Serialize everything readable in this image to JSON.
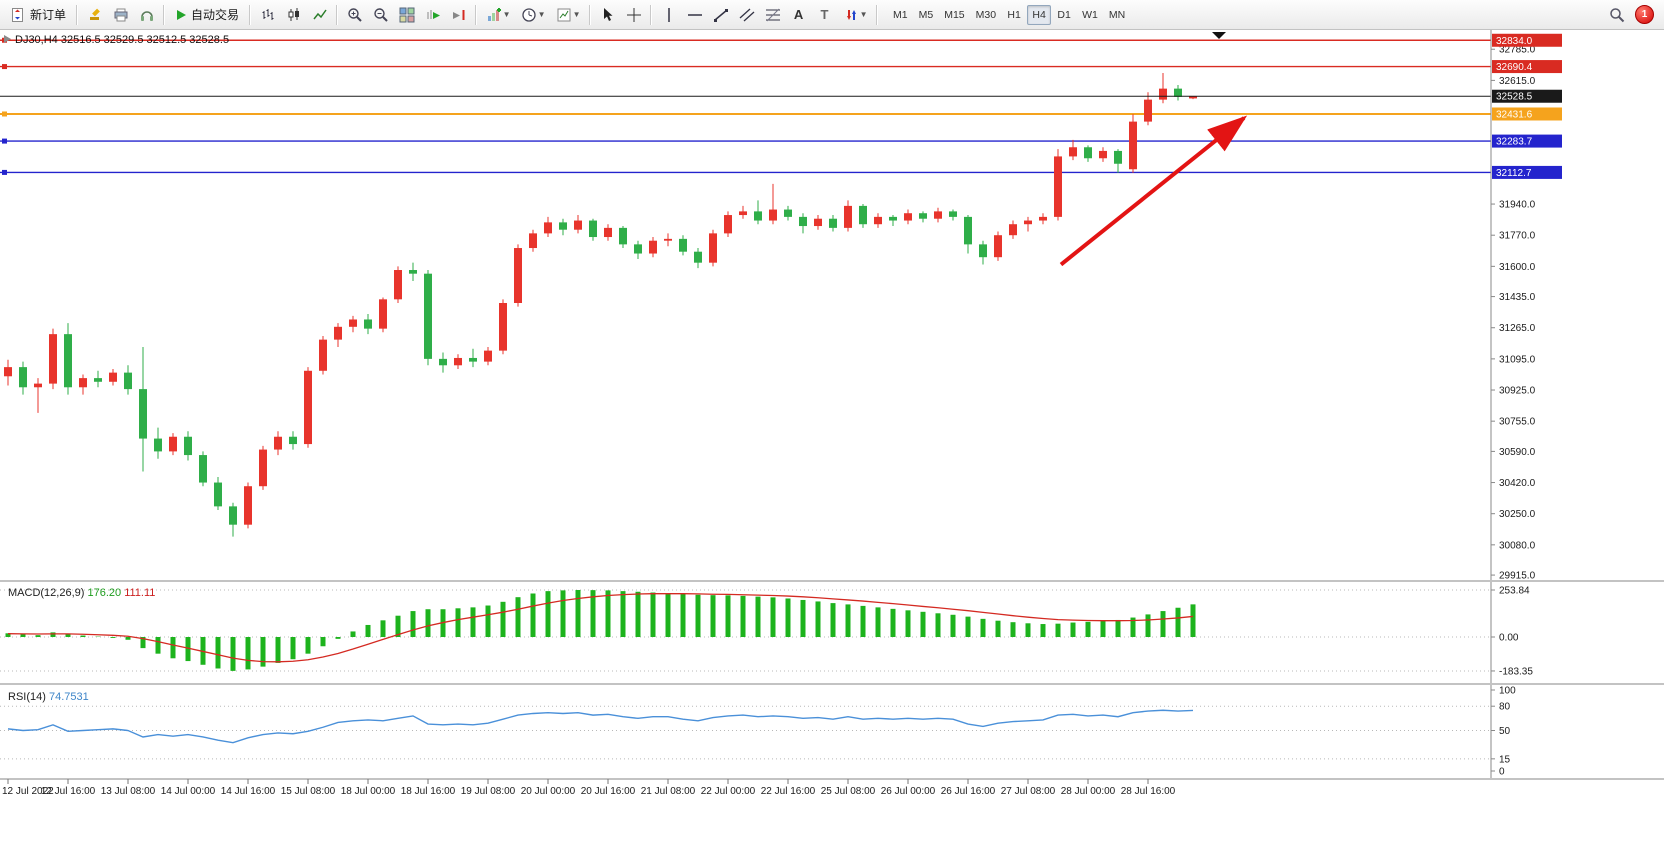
{
  "toolbar": {
    "new_order": "新订单",
    "auto_trading": "自动交易",
    "timeframes": [
      "M1",
      "M5",
      "M15",
      "M30",
      "H1",
      "H4",
      "D1",
      "W1",
      "MN"
    ],
    "active_timeframe": "H4",
    "notification_badge": "1",
    "icon_names": [
      "new-order-icon",
      "hammer-icon",
      "print-icon",
      "headset-icon",
      "autotrading-play-icon",
      "bar-chart-icon",
      "candlestick-chart-icon",
      "line-chart-icon",
      "zoom-in-icon",
      "zoom-out-icon",
      "tile-windows-icon",
      "auto-scroll-icon",
      "chart-shift-icon",
      "indicators-icon",
      "periods-icon",
      "template-icon",
      "cursor-icon",
      "crosshair-icon",
      "vertical-line-icon",
      "horizontal-line-icon",
      "trendline-icon",
      "channel-icon",
      "fibonacci-icon",
      "text-icon",
      "text-label-icon",
      "arrows-tool-icon",
      "search-icon"
    ]
  },
  "colors": {
    "up": "#e8342c",
    "down": "#2fae49",
    "macd_hist": "#1db31d",
    "macd_signal": "#d42a22",
    "rsi_line": "#4a90d9",
    "line_red": "#d92b22",
    "line_orange": "#f5a31d",
    "line_blue": "#2424cd",
    "current_price": "#1a1a1a"
  },
  "chart_data": {
    "type": "candlestick",
    "title": "DJ30,H4",
    "symbol": "DJ30",
    "timeframe": "H4",
    "ohlc_label": "32516.5 32529.5 32512.5 32528.5",
    "open": 32516.5,
    "high": 32529.5,
    "low": 32512.5,
    "close": 32528.5,
    "ylim": [
      29880,
      32890
    ],
    "candles_per_label": 4,
    "time_labels": [
      "12 Jul 2022",
      "12 Jul 16:00",
      "13 Jul 08:00",
      "14 Jul 00:00",
      "14 Jul 16:00",
      "15 Jul 08:00",
      "18 Jul 00:00",
      "18 Jul 16:00",
      "19 Jul 08:00",
      "20 Jul 00:00",
      "20 Jul 16:00",
      "21 Jul 08:00",
      "22 Jul 00:00",
      "22 Jul 16:00",
      "25 Jul 08:00",
      "26 Jul 00:00",
      "26 Jul 16:00",
      "27 Jul 08:00",
      "28 Jul 00:00",
      "28 Jul 16:00"
    ],
    "price_axis_ticks": [
      "32785.0",
      "32615.0",
      "31940.0",
      "31770.0",
      "31600.0",
      "31435.0",
      "31265.0",
      "31095.0",
      "30925.0",
      "30755.0",
      "30590.0",
      "30420.0",
      "30250.0",
      "30080.0",
      "29915.0"
    ],
    "price_tags": [
      {
        "value": 32834.0,
        "label": "32834.0",
        "type": "resistance",
        "color": "#d92b22"
      },
      {
        "value": 32690.4,
        "label": "32690.4",
        "type": "resistance",
        "color": "#d92b22"
      },
      {
        "value": 32528.5,
        "label": "32528.5",
        "type": "current-price",
        "color": "#1a1a1a"
      },
      {
        "value": 32431.6,
        "label": "32431.6",
        "type": "level",
        "color": "#f5a31d"
      },
      {
        "value": 32283.7,
        "label": "32283.7",
        "type": "support",
        "color": "#2424cd"
      },
      {
        "value": 32112.7,
        "label": "32112.7",
        "type": "support",
        "color": "#2424cd"
      }
    ],
    "arrow": {
      "color": "#e31414",
      "from": {
        "index": 70.2,
        "price": 31610
      },
      "to": {
        "index": 82.4,
        "price": 32410
      }
    },
    "candles": [
      [
        31000,
        31090,
        30950,
        31050
      ],
      [
        31050,
        31080,
        30900,
        30940
      ],
      [
        30940,
        30990,
        30800,
        30960
      ],
      [
        30960,
        31260,
        30930,
        31230
      ],
      [
        31230,
        31290,
        30900,
        30940
      ],
      [
        30940,
        31010,
        30900,
        30990
      ],
      [
        30990,
        31030,
        30940,
        30970
      ],
      [
        30970,
        31040,
        30950,
        31020
      ],
      [
        31020,
        31060,
        30900,
        30930
      ],
      [
        30930,
        31160,
        30480,
        30660
      ],
      [
        30660,
        30720,
        30550,
        30590
      ],
      [
        30590,
        30690,
        30570,
        30670
      ],
      [
        30670,
        30700,
        30540,
        30570
      ],
      [
        30570,
        30590,
        30400,
        30420
      ],
      [
        30420,
        30450,
        30270,
        30290
      ],
      [
        30290,
        30310,
        30125,
        30190
      ],
      [
        30190,
        30420,
        30170,
        30400
      ],
      [
        30400,
        30620,
        30380,
        30600
      ],
      [
        30600,
        30700,
        30570,
        30670
      ],
      [
        30670,
        30700,
        30600,
        30630
      ],
      [
        30630,
        31050,
        30610,
        31030
      ],
      [
        31030,
        31220,
        31010,
        31200
      ],
      [
        31200,
        31290,
        31160,
        31270
      ],
      [
        31270,
        31330,
        31240,
        31310
      ],
      [
        31310,
        31340,
        31230,
        31260
      ],
      [
        31260,
        31430,
        31240,
        31420
      ],
      [
        31420,
        31600,
        31400,
        31580
      ],
      [
        31580,
        31620,
        31520,
        31560
      ],
      [
        31560,
        31580,
        31060,
        31095
      ],
      [
        31095,
        31130,
        31020,
        31060
      ],
      [
        31060,
        31120,
        31040,
        31100
      ],
      [
        31100,
        31150,
        31050,
        31080
      ],
      [
        31080,
        31160,
        31060,
        31140
      ],
      [
        31140,
        31420,
        31120,
        31400
      ],
      [
        31400,
        31720,
        31380,
        31700
      ],
      [
        31700,
        31800,
        31680,
        31780
      ],
      [
        31780,
        31870,
        31760,
        31840
      ],
      [
        31840,
        31860,
        31770,
        31800
      ],
      [
        31800,
        31880,
        31780,
        31850
      ],
      [
        31850,
        31860,
        31740,
        31760
      ],
      [
        31760,
        31830,
        31740,
        31810
      ],
      [
        31810,
        31820,
        31700,
        31720
      ],
      [
        31720,
        31740,
        31640,
        31670
      ],
      [
        31670,
        31760,
        31650,
        31740
      ],
      [
        31740,
        31780,
        31710,
        31750
      ],
      [
        31750,
        31770,
        31660,
        31680
      ],
      [
        31680,
        31700,
        31590,
        31620
      ],
      [
        31620,
        31800,
        31600,
        31780
      ],
      [
        31780,
        31900,
        31760,
        31880
      ],
      [
        31880,
        31930,
        31860,
        31900
      ],
      [
        31900,
        31960,
        31830,
        31850
      ],
      [
        31850,
        32050,
        31830,
        31910
      ],
      [
        31910,
        31930,
        31850,
        31870
      ],
      [
        31870,
        31890,
        31780,
        31820
      ],
      [
        31820,
        31880,
        31800,
        31860
      ],
      [
        31860,
        31880,
        31790,
        31810
      ],
      [
        31810,
        31960,
        31790,
        31930
      ],
      [
        31930,
        31940,
        31810,
        31830
      ],
      [
        31830,
        31890,
        31810,
        31870
      ],
      [
        31870,
        31880,
        31820,
        31850
      ],
      [
        31850,
        31910,
        31830,
        31890
      ],
      [
        31890,
        31900,
        31840,
        31860
      ],
      [
        31860,
        31920,
        31840,
        31900
      ],
      [
        31900,
        31910,
        31850,
        31870
      ],
      [
        31870,
        31880,
        31670,
        31720
      ],
      [
        31720,
        31740,
        31610,
        31650
      ],
      [
        31650,
        31790,
        31630,
        31770
      ],
      [
        31770,
        31850,
        31750,
        31830
      ],
      [
        31830,
        31870,
        31790,
        31850
      ],
      [
        31850,
        31890,
        31830,
        31870
      ],
      [
        31870,
        32240,
        31850,
        32200
      ],
      [
        32200,
        32290,
        32180,
        32250
      ],
      [
        32250,
        32260,
        32170,
        32190
      ],
      [
        32190,
        32250,
        32170,
        32230
      ],
      [
        32230,
        32240,
        32110,
        32160
      ],
      [
        32130,
        32430,
        32110,
        32390
      ],
      [
        32390,
        32550,
        32370,
        32510
      ],
      [
        32510,
        32655,
        32490,
        32570
      ],
      [
        32570,
        32590,
        32505,
        32525
      ],
      [
        32516.5,
        32529.5,
        32512.5,
        32528.5
      ]
    ],
    "indicators": {
      "macd": {
        "label": "MACD(12,26,9)",
        "main": 176.2,
        "signal": 111.11,
        "main_display": "176.20",
        "signal_display": "111.11",
        "scale_labels": [
          "253.84",
          "0.00",
          "-183.35"
        ],
        "histogram": [
          20,
          15,
          10,
          25,
          18,
          8,
          2,
          -5,
          -15,
          -60,
          -90,
          -115,
          -130,
          -150,
          -170,
          -183,
          -175,
          -160,
          -140,
          -120,
          -90,
          -50,
          -10,
          30,
          65,
          90,
          115,
          140,
          150,
          150,
          155,
          160,
          170,
          190,
          215,
          235,
          248,
          252,
          254,
          253,
          252,
          248,
          244,
          240,
          237,
          232,
          228,
          226,
          225,
          222,
          218,
          214,
          208,
          200,
          192,
          183,
          176,
          168,
          160,
          152,
          144,
          136,
          128,
          120,
          110,
          98,
          88,
          80,
          74,
          70,
          72,
          78,
          82,
          88,
          92,
          105,
          122,
          140,
          158,
          176.2
        ],
        "signal_series": [
          18,
          17,
          16,
          17,
          17,
          15,
          12,
          9,
          4,
          -9,
          -25,
          -43,
          -60,
          -78,
          -96,
          -114,
          -126,
          -133,
          -134,
          -131,
          -123,
          -108,
          -89,
          -65,
          -39,
          -13,
          13,
          38,
          60,
          78,
          94,
          107,
          120,
          134,
          150,
          167,
          183,
          197,
          208,
          217,
          224,
          229,
          232,
          234,
          234,
          234,
          233,
          231,
          230,
          228,
          226,
          224,
          221,
          217,
          212,
          206,
          200,
          194,
          187,
          180,
          173,
          165,
          158,
          150,
          142,
          133,
          124,
          115,
          107,
          100,
          94,
          91,
          89,
          88,
          88,
          89,
          92,
          97,
          103,
          111.1
        ]
      },
      "rsi": {
        "label": "RSI(14)",
        "value": 74.7531,
        "value_display": "74.7531",
        "scale_labels": [
          "100",
          "80",
          "50",
          "15",
          "0"
        ],
        "levels": [
          80,
          50,
          15
        ],
        "values": [
          52,
          50,
          51,
          57,
          49,
          50,
          51,
          52,
          50,
          42,
          45,
          43,
          45,
          42,
          38,
          35,
          41,
          45,
          47,
          46,
          49,
          54,
          60,
          62,
          63,
          62,
          65,
          68,
          58,
          57,
          58,
          57,
          59,
          64,
          69,
          71,
          72,
          71,
          72,
          69,
          70,
          67,
          65,
          67,
          67,
          64,
          62,
          66,
          68,
          69,
          67,
          68,
          67,
          65,
          66,
          64,
          67,
          64,
          65,
          64,
          65,
          64,
          65,
          64,
          58,
          55,
          59,
          61,
          62,
          63,
          69,
          70,
          68,
          69,
          67,
          72,
          74,
          75,
          74,
          74.75
        ]
      }
    }
  }
}
